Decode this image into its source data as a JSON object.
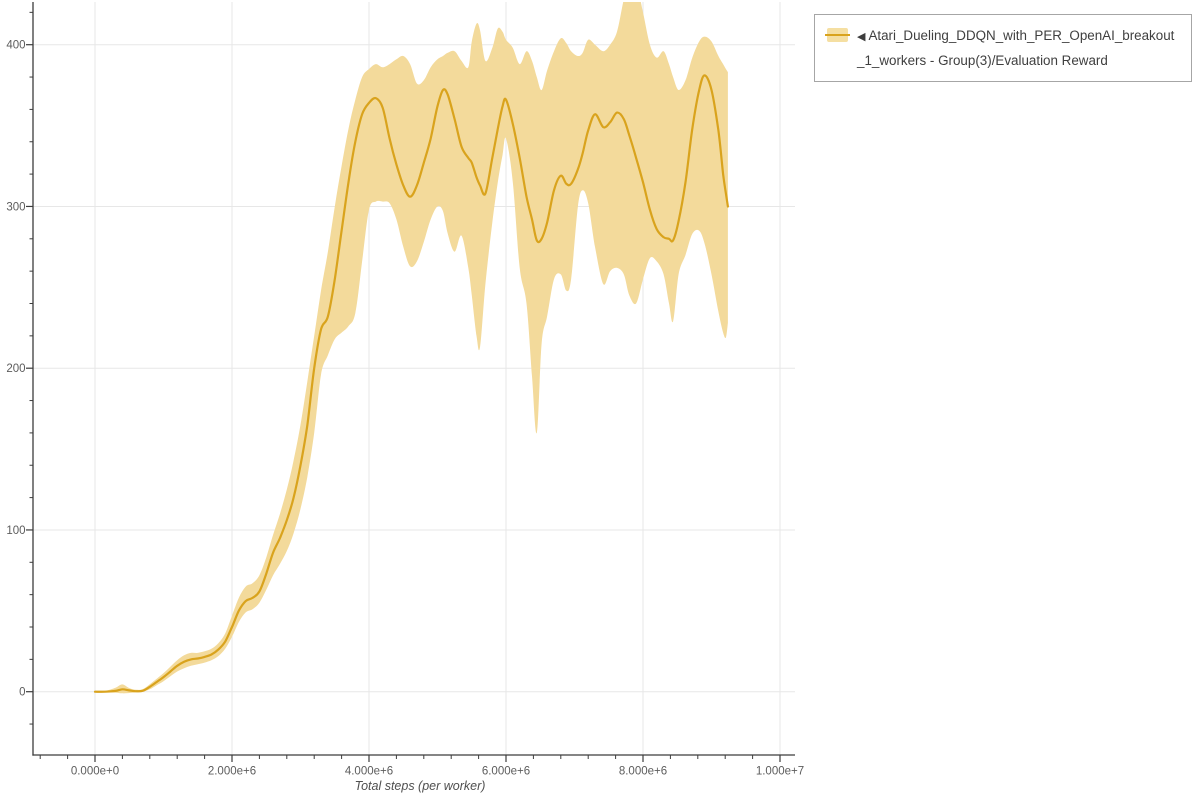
{
  "chart": {
    "x_axis": {
      "label": "Total steps (per worker)",
      "tick_values": [
        0,
        2000000,
        4000000,
        6000000,
        8000000,
        10000000
      ],
      "tick_labels": [
        "0.000e+0",
        "2.000e+6",
        "4.000e+6",
        "6.000e+6",
        "8.000e+6",
        "1.000e+7"
      ],
      "minor_tick_step": 400000
    },
    "y_axis": {
      "label": "",
      "tick_values": [
        0,
        100,
        200,
        300,
        400
      ],
      "tick_labels": [
        "0",
        "100",
        "200",
        "300",
        "400"
      ],
      "minor_tick_step": 20
    },
    "legend": {
      "collapse_glyph": "◀",
      "series_name": "Atari_Dueling_DDQN_with_PER_OpenAI_breakout_1_workers - Group(3)/Evaluation Reward"
    }
  },
  "chart_data": {
    "type": "line",
    "title": "",
    "xlabel": "Total steps (per worker)",
    "ylabel": "",
    "xlim": [
      -905000,
      10220000
    ],
    "ylim": [
      -39,
      426
    ],
    "grid": true,
    "legend_position": "top-right",
    "x_scale": 1000000,
    "series": [
      {
        "name": "Atari_Dueling_DDQN_with_PER_OpenAI_breakout_1_workers - Group(3)/Evaluation Reward",
        "style": "mean-with-confidence-band",
        "x": [
          0,
          0.15,
          0.3,
          0.4,
          0.5,
          0.6,
          0.7,
          0.8,
          0.9,
          1.0,
          1.1,
          1.2,
          1.3,
          1.4,
          1.5,
          1.6,
          1.7,
          1.8,
          1.9,
          2.0,
          2.1,
          2.2,
          2.3,
          2.4,
          2.5,
          2.6,
          2.7,
          2.8,
          2.9,
          3.0,
          3.1,
          3.2,
          3.3,
          3.4,
          3.5,
          3.6,
          3.7,
          3.8,
          3.9,
          4.0,
          4.1,
          4.2,
          4.3,
          4.4,
          4.5,
          4.6,
          4.7,
          4.8,
          4.9,
          5.0,
          5.08,
          5.15,
          5.25,
          5.35,
          5.45,
          5.5,
          5.57,
          5.62,
          5.7,
          5.8,
          5.88,
          5.95,
          6.0,
          6.1,
          6.2,
          6.3,
          6.38,
          6.45,
          6.52,
          6.6,
          6.7,
          6.8,
          6.88,
          6.95,
          7.05,
          7.12,
          7.2,
          7.3,
          7.42,
          7.52,
          7.62,
          7.72,
          7.8,
          7.9,
          8.0,
          8.1,
          8.2,
          8.3,
          8.38,
          8.44,
          8.52,
          8.62,
          8.72,
          8.82,
          8.9,
          9.0,
          9.1,
          9.17,
          9.21,
          9.24
        ],
        "mean": [
          0,
          0,
          0.5,
          1.5,
          0.8,
          0.3,
          0.6,
          3,
          6,
          9,
          12.5,
          16,
          18.5,
          20,
          20.5,
          21.5,
          23,
          26,
          31,
          40,
          50,
          56,
          58,
          62,
          73,
          86,
          95,
          106,
          120,
          140,
          165,
          200,
          224,
          232,
          255,
          285,
          315,
          340,
          357,
          364,
          367,
          361,
          342,
          326,
          313,
          306,
          313,
          327,
          342,
          362,
          372,
          369,
          354,
          337,
          330,
          327,
          318,
          313,
          308,
          330,
          348,
          362,
          366,
          351,
          330,
          306,
          292,
          279,
          280,
          290,
          310,
          319,
          314,
          314,
          323,
          333,
          347,
          357,
          349,
          352,
          358,
          354,
          344,
          330,
          315,
          298,
          286,
          281,
          280,
          279,
          291,
          315,
          348,
          372,
          381,
          372,
          347,
          320,
          308,
          300
        ],
        "lower": [
          -0.5,
          -0.5,
          -0.6,
          -1,
          -0.8,
          -0.5,
          0,
          1.5,
          4,
          6.5,
          9.5,
          12.5,
          14.5,
          16,
          17,
          18,
          19.5,
          22,
          26.5,
          34,
          43,
          49,
          51,
          55,
          63,
          72,
          79,
          87,
          98,
          113,
          133,
          160,
          196,
          208,
          218,
          222,
          226,
          234,
          266,
          298,
          303,
          303,
          302,
          292,
          275,
          263,
          266,
          278,
          292,
          300,
          297,
          283,
          272,
          282,
          262,
          245,
          220,
          213,
          252,
          290,
          315,
          332,
          342,
          315,
          262,
          240,
          195,
          160,
          215,
          232,
          255,
          258,
          248,
          255,
          300,
          310,
          302,
          275,
          252,
          260,
          262,
          258,
          245,
          240,
          255,
          268,
          266,
          258,
          240,
          229,
          258,
          270,
          283,
          285,
          277,
          258,
          235,
          222,
          219,
          228
        ],
        "upper": [
          0.5,
          0.6,
          2.5,
          4.5,
          2.2,
          1.2,
          1.6,
          4.6,
          8,
          11.5,
          15.5,
          19.5,
          22.5,
          24,
          24,
          25,
          26.5,
          30,
          36,
          47,
          58,
          65,
          67,
          72,
          83,
          97,
          110,
          125,
          143,
          165,
          192,
          220,
          248,
          272,
          300,
          325,
          348,
          366,
          380,
          385,
          388,
          386,
          388,
          391,
          393,
          388,
          376,
          378,
          386,
          391,
          393,
          395,
          396,
          390,
          386,
          402,
          413,
          409,
          390,
          398,
          410,
          408,
          403,
          398,
          388,
          396,
          390,
          380,
          372,
          384,
          396,
          404,
          401,
          396,
          393,
          395,
          403,
          400,
          396,
          400,
          408,
          428,
          438,
          438,
          420,
          400,
          392,
          396,
          388,
          380,
          372,
          378,
          392,
          402,
          405,
          402,
          393,
          388,
          385,
          383
        ]
      }
    ]
  },
  "colors": {
    "line": "#d9a31d",
    "band": "#f3da9b",
    "grid": "#e7e7e7",
    "spine": "#3c3c3c",
    "tick_label": "#5c5c5c",
    "axis_label": "#4f4f4f",
    "legend_border": "#a6a6a6",
    "legend_text": "#3f3f3f",
    "swatch_fill": "#f5dfa2"
  }
}
